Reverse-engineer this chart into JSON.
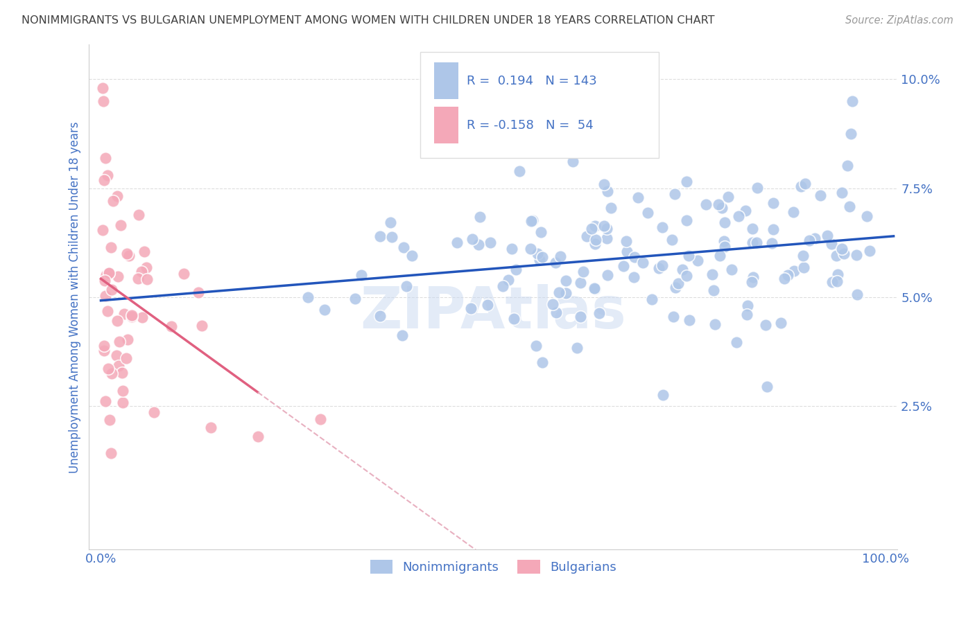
{
  "title": "NONIMMIGRANTS VS BULGARIAN UNEMPLOYMENT AMONG WOMEN WITH CHILDREN UNDER 18 YEARS CORRELATION CHART",
  "source": "Source: ZipAtlas.com",
  "ylabel_label": "Unemployment Among Women with Children Under 18 years",
  "r_nonimm": 0.194,
  "n_nonimm": 143,
  "r_bulg": -0.158,
  "n_bulg": 54,
  "nonimm_color": "#aec6e8",
  "nonimm_edge_color": "#aec6e8",
  "bulg_color": "#f4a8b8",
  "bulg_edge_color": "#f4a8b8",
  "trend_nonimm_color": "#2255bb",
  "trend_bulg_solid_color": "#e06080",
  "trend_bulg_dash_color": "#e8b0c0",
  "background_color": "#ffffff",
  "grid_color": "#dddddd",
  "title_color": "#404040",
  "axis_color": "#4472c4",
  "legend_frame_color": "#dddddd",
  "watermark_color": "#c8d8f0",
  "xlim": [
    -0.015,
    1.015
  ],
  "ylim": [
    -0.008,
    0.108
  ],
  "yticks": [
    0.025,
    0.05,
    0.075,
    0.1
  ],
  "ytick_labels": [
    "2.5%",
    "5.0%",
    "7.5%",
    "10.0%"
  ],
  "xticks": [
    0.0,
    1.0
  ],
  "xtick_labels": [
    "0.0%",
    "100.0%"
  ]
}
